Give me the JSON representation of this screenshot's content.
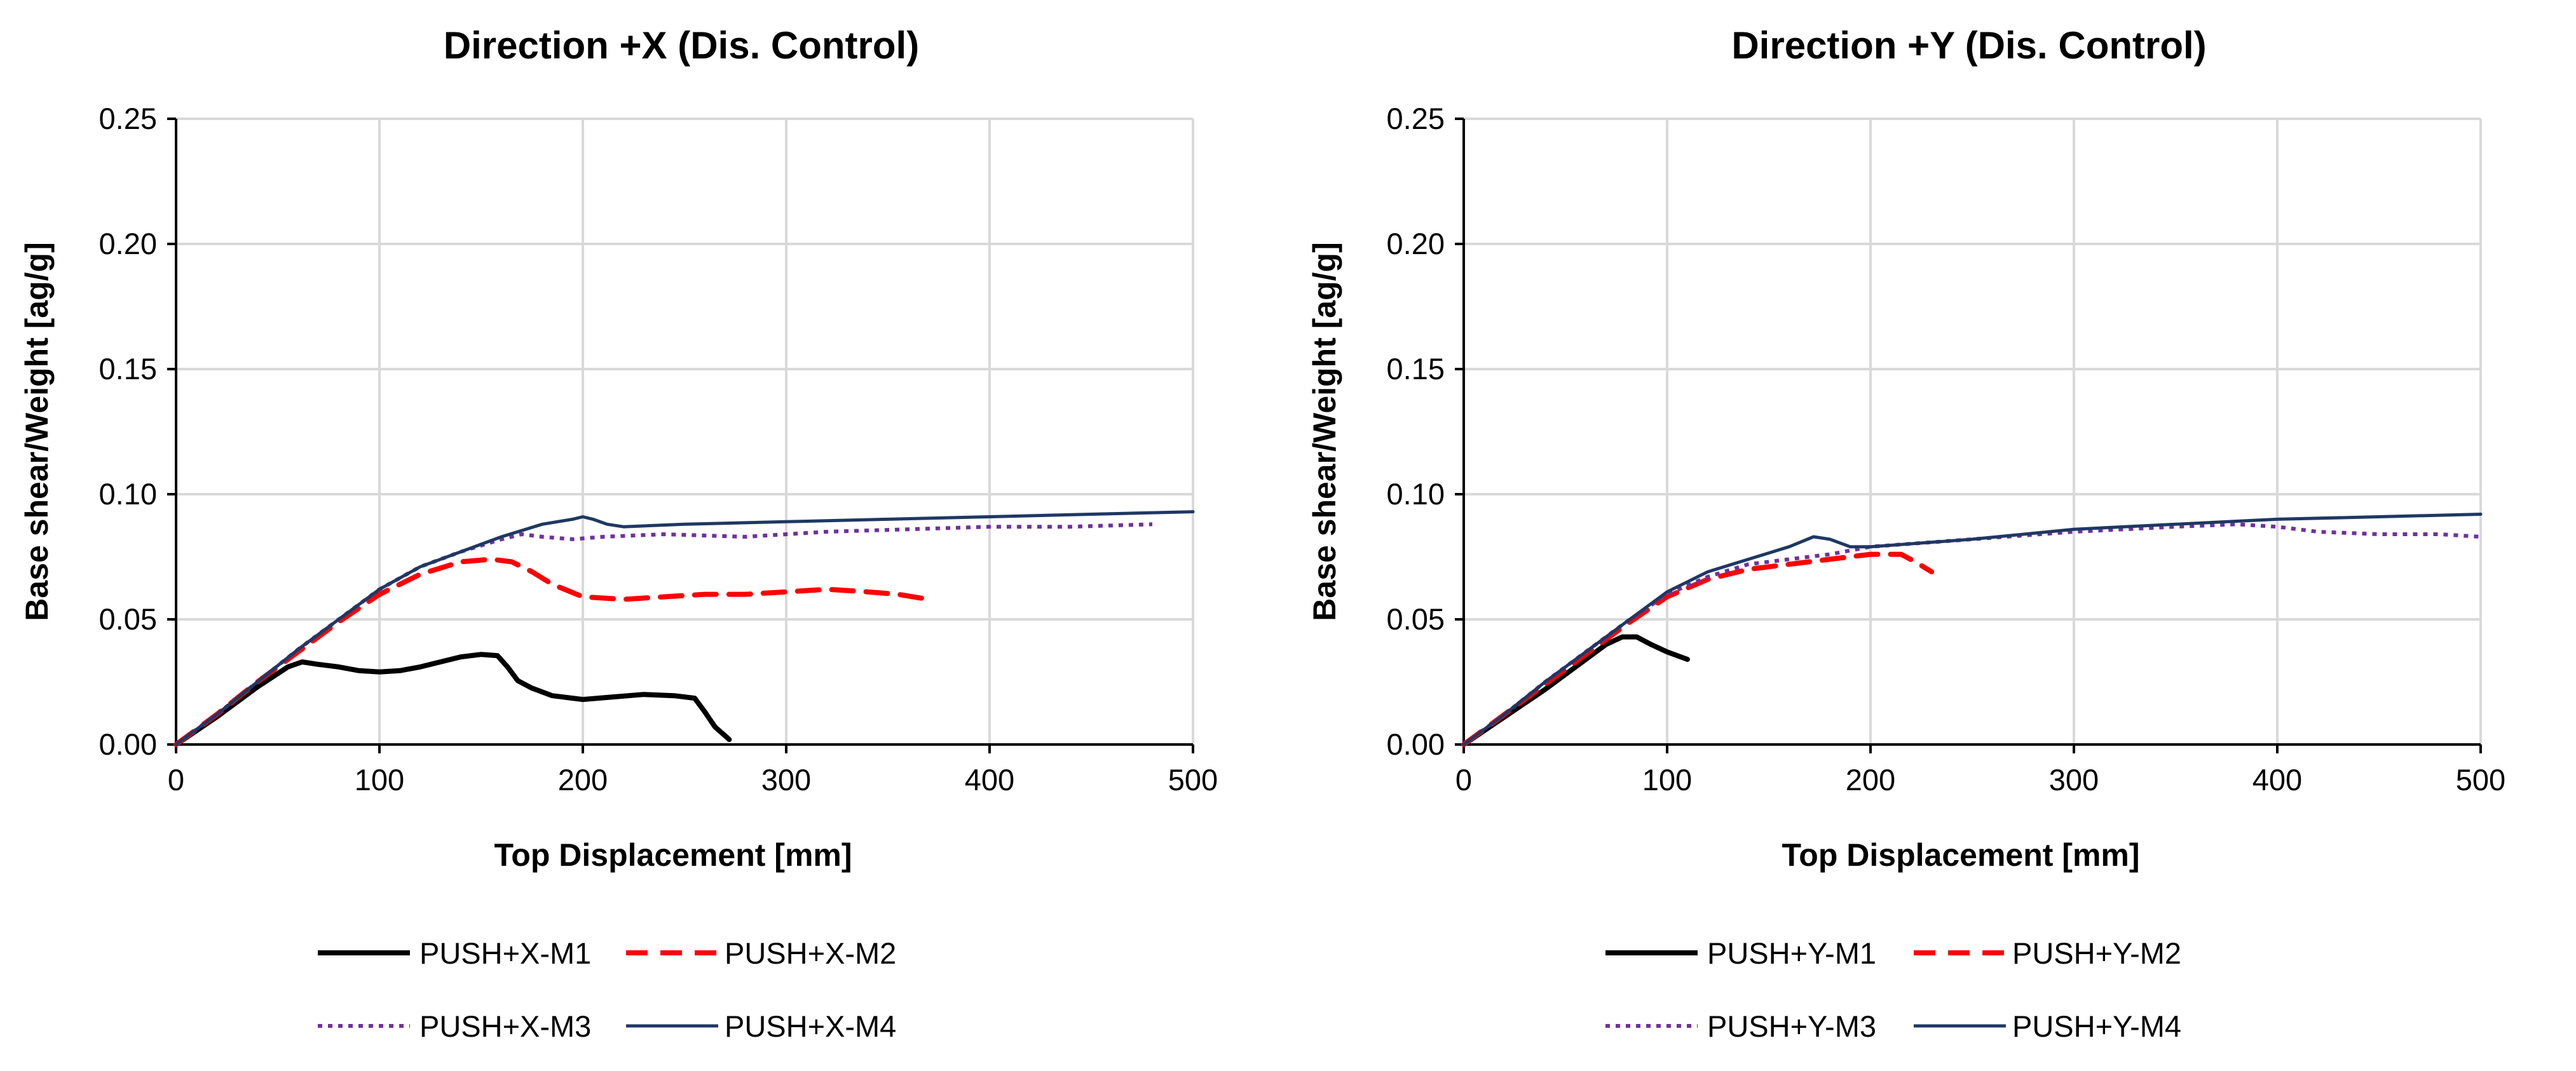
{
  "chart_data": [
    {
      "type": "line",
      "title": "Direction +X (Dis. Control)",
      "xlabel": "Top Displacement [mm]",
      "ylabel": "Base shear/Weight [ag/g]",
      "xlim": [
        0,
        500
      ],
      "ylim": [
        0,
        0.25
      ],
      "xticks": [
        0,
        100,
        200,
        300,
        400,
        500
      ],
      "xtick_labels": [
        "0",
        "100",
        "200",
        "300",
        "400",
        "500"
      ],
      "yticks": [
        0,
        0.05,
        0.1,
        0.15,
        0.2,
        0.25
      ],
      "ytick_labels": [
        "0.00",
        "0.05",
        "0.10",
        "0.15",
        "0.20",
        "0.25"
      ],
      "grid": true,
      "legend_position": "bottom",
      "series": [
        {
          "name": "PUSH+X-M1",
          "style": "solid",
          "color": "#000000",
          "x": [
            0,
            20,
            40,
            55,
            62,
            70,
            80,
            90,
            100,
            110,
            120,
            130,
            140,
            150,
            158,
            163,
            168,
            175,
            185,
            200,
            215,
            230,
            245,
            255,
            260,
            265,
            272
          ],
          "y": [
            0,
            0.011,
            0.023,
            0.031,
            0.033,
            0.032,
            0.031,
            0.0295,
            0.029,
            0.0295,
            0.031,
            0.033,
            0.035,
            0.036,
            0.0355,
            0.031,
            0.0255,
            0.0225,
            0.0195,
            0.018,
            0.019,
            0.02,
            0.0195,
            0.0185,
            0.013,
            0.007,
            0.002
          ]
        },
        {
          "name": "PUSH+X-M2",
          "style": "dashed",
          "color": "#ff0000",
          "x": [
            0,
            20,
            40,
            60,
            80,
            100,
            120,
            140,
            155,
            165,
            175,
            185,
            200,
            220,
            240,
            260,
            280,
            300,
            320,
            340,
            355,
            370
          ],
          "y": [
            0,
            0.012,
            0.025,
            0.037,
            0.049,
            0.06,
            0.068,
            0.073,
            0.074,
            0.073,
            0.069,
            0.064,
            0.059,
            0.058,
            0.059,
            0.06,
            0.06,
            0.061,
            0.062,
            0.061,
            0.06,
            0.058
          ]
        },
        {
          "name": "PUSH+X-M3",
          "style": "dotted",
          "color": "#7030a0",
          "x": [
            0,
            20,
            40,
            60,
            80,
            100,
            120,
            140,
            160,
            170,
            180,
            195,
            210,
            240,
            280,
            320,
            360,
            400,
            440,
            480
          ],
          "y": [
            0,
            0.012,
            0.025,
            0.038,
            0.05,
            0.062,
            0.071,
            0.077,
            0.082,
            0.084,
            0.083,
            0.082,
            0.083,
            0.084,
            0.083,
            0.085,
            0.086,
            0.087,
            0.087,
            0.088
          ]
        },
        {
          "name": "PUSH+X-M4",
          "style": "solid",
          "color": "#1f3864",
          "x": [
            0,
            20,
            40,
            60,
            80,
            100,
            120,
            140,
            160,
            180,
            195,
            200,
            205,
            212,
            220,
            250,
            300,
            350,
            400,
            450,
            500
          ],
          "y": [
            0,
            0.012,
            0.025,
            0.038,
            0.05,
            0.062,
            0.071,
            0.077,
            0.083,
            0.088,
            0.09,
            0.091,
            0.09,
            0.088,
            0.087,
            0.088,
            0.089,
            0.09,
            0.091,
            0.092,
            0.093
          ]
        }
      ]
    },
    {
      "type": "line",
      "title": "Direction +Y (Dis. Control)",
      "xlabel": "Top Displacement [mm]",
      "ylabel": "Base shear/Weight [ag/g]",
      "xlim": [
        0,
        500
      ],
      "ylim": [
        0,
        0.25
      ],
      "xticks": [
        0,
        100,
        200,
        300,
        400,
        500
      ],
      "xtick_labels": [
        "0",
        "100",
        "200",
        "300",
        "400",
        "500"
      ],
      "yticks": [
        0,
        0.05,
        0.1,
        0.15,
        0.2,
        0.25
      ],
      "ytick_labels": [
        "0.00",
        "0.05",
        "0.10",
        "0.15",
        "0.20",
        "0.25"
      ],
      "grid": true,
      "legend_position": "bottom",
      "series": [
        {
          "name": "PUSH+Y-M1",
          "style": "solid",
          "color": "#000000",
          "x": [
            0,
            20,
            40,
            60,
            70,
            78,
            85,
            92,
            100,
            110
          ],
          "y": [
            0,
            0.011,
            0.022,
            0.034,
            0.04,
            0.043,
            0.043,
            0.04,
            0.037,
            0.034
          ]
        },
        {
          "name": "PUSH+Y-M2",
          "style": "dashed",
          "color": "#ff0000",
          "x": [
            0,
            20,
            40,
            60,
            80,
            100,
            120,
            140,
            160,
            180,
            200,
            215,
            222,
            230
          ],
          "y": [
            0,
            0.012,
            0.024,
            0.036,
            0.048,
            0.059,
            0.066,
            0.07,
            0.072,
            0.074,
            0.076,
            0.076,
            0.073,
            0.069
          ]
        },
        {
          "name": "PUSH+Y-M3",
          "style": "dotted",
          "color": "#7030a0",
          "x": [
            0,
            20,
            40,
            60,
            80,
            100,
            120,
            140,
            160,
            180,
            200,
            250,
            300,
            350,
            380,
            400,
            420,
            450,
            480,
            500
          ],
          "y": [
            0,
            0.012,
            0.025,
            0.037,
            0.049,
            0.06,
            0.067,
            0.072,
            0.074,
            0.076,
            0.079,
            0.082,
            0.085,
            0.087,
            0.088,
            0.087,
            0.085,
            0.084,
            0.084,
            0.083
          ]
        },
        {
          "name": "PUSH+Y-M4",
          "style": "solid",
          "color": "#1f3864",
          "x": [
            0,
            20,
            40,
            60,
            80,
            100,
            120,
            140,
            160,
            172,
            180,
            190,
            200,
            250,
            300,
            350,
            400,
            450,
            500
          ],
          "y": [
            0,
            0.012,
            0.025,
            0.037,
            0.049,
            0.061,
            0.069,
            0.074,
            0.079,
            0.083,
            0.082,
            0.079,
            0.079,
            0.082,
            0.086,
            0.088,
            0.09,
            0.091,
            0.092
          ]
        }
      ]
    }
  ]
}
